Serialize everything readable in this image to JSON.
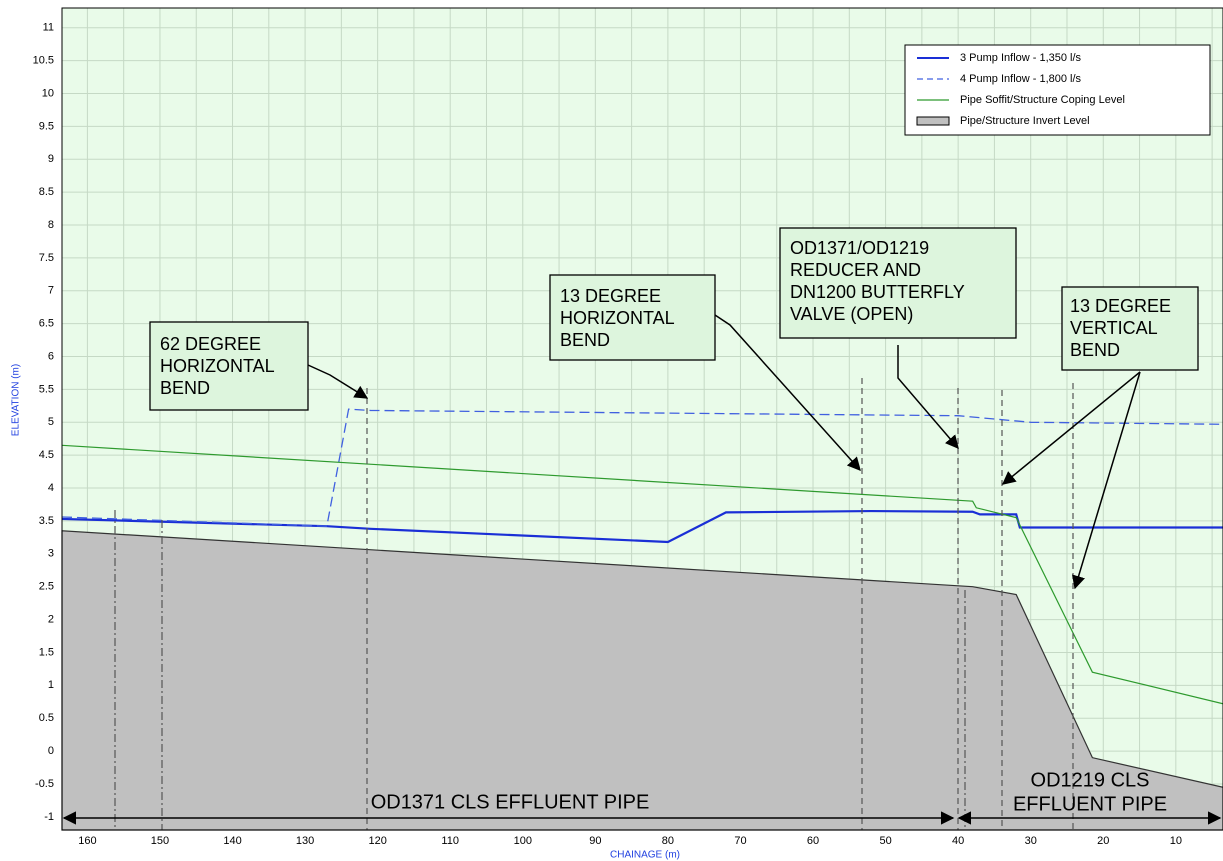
{
  "chart_data": {
    "type": "line",
    "xlabel": "CHAINAGE (m)",
    "ylabel": "ELEVATION (m)",
    "xlim": [
      163.5,
      3.5
    ],
    "ylim": [
      -1.2,
      11.3
    ],
    "xticks": [
      160,
      150,
      140,
      130,
      120,
      110,
      100,
      90,
      80,
      70,
      60,
      50,
      40,
      30,
      20,
      10
    ],
    "xminorticks": [
      155,
      145,
      135,
      125,
      115,
      105,
      95,
      85,
      75,
      65,
      55,
      45,
      35,
      25,
      15,
      5
    ],
    "yticks": [
      -1,
      -0.5,
      0,
      0.5,
      1,
      1.5,
      2,
      2.5,
      3,
      3.5,
      4,
      4.5,
      5,
      5.5,
      6,
      6.5,
      7,
      7.5,
      8,
      8.5,
      9,
      9.5,
      10,
      10.5,
      11
    ],
    "grid": true,
    "legend": "upper right",
    "series": [
      {
        "name": "3 Pump Inflow - 1,350 l/s",
        "color": "#1a2fd6",
        "style": "solid",
        "x": [
          163.5,
          127,
          121,
          80,
          72,
          52,
          38,
          37,
          32,
          31.5,
          3.5
        ],
        "values": [
          3.53,
          3.42,
          3.38,
          3.18,
          3.63,
          3.65,
          3.64,
          3.6,
          3.6,
          3.4,
          3.4
        ]
      },
      {
        "name": "4 Pump Inflow - 1,800 l/s",
        "color": "#4060e0",
        "style": "dashed",
        "x": [
          163.5,
          127,
          124,
          121,
          40,
          30,
          3.5
        ],
        "values": [
          3.56,
          3.42,
          5.2,
          5.18,
          5.1,
          5.0,
          4.97
        ]
      },
      {
        "name": "Pipe Soffit/Structure Coping Level",
        "color": "#2e9a2e",
        "style": "solid",
        "x": [
          163.5,
          38,
          37.5,
          32,
          21.5,
          3.5
        ],
        "values": [
          4.65,
          3.8,
          3.7,
          3.55,
          1.2,
          0.72
        ]
      },
      {
        "name": "Pipe/Structure Invert Level",
        "color": "#c0c0c0",
        "style": "area",
        "x": [
          163.5,
          38,
          32,
          21.5,
          3.5
        ],
        "values": [
          3.35,
          2.5,
          2.38,
          -0.1,
          -0.55
        ]
      }
    ],
    "annotations": [
      {
        "lines": [
          "62 DEGREE",
          "HORIZONTAL",
          "BEND"
        ]
      },
      {
        "lines": [
          "13 DEGREE",
          "HORIZONTAL",
          "BEND"
        ]
      },
      {
        "lines": [
          "OD1371/OD1219",
          "REDUCER AND",
          "DN1200 BUTTERFLY",
          "VALVE (OPEN)"
        ]
      },
      {
        "lines": [
          "13 DEGREE",
          "VERTICAL",
          "BEND"
        ]
      }
    ],
    "pipes": [
      {
        "lines": [
          "OD1371 CLS EFFLUENT PIPE"
        ]
      },
      {
        "lines": [
          "OD1219 CLS",
          "EFFLUENT PIPE"
        ]
      }
    ]
  }
}
